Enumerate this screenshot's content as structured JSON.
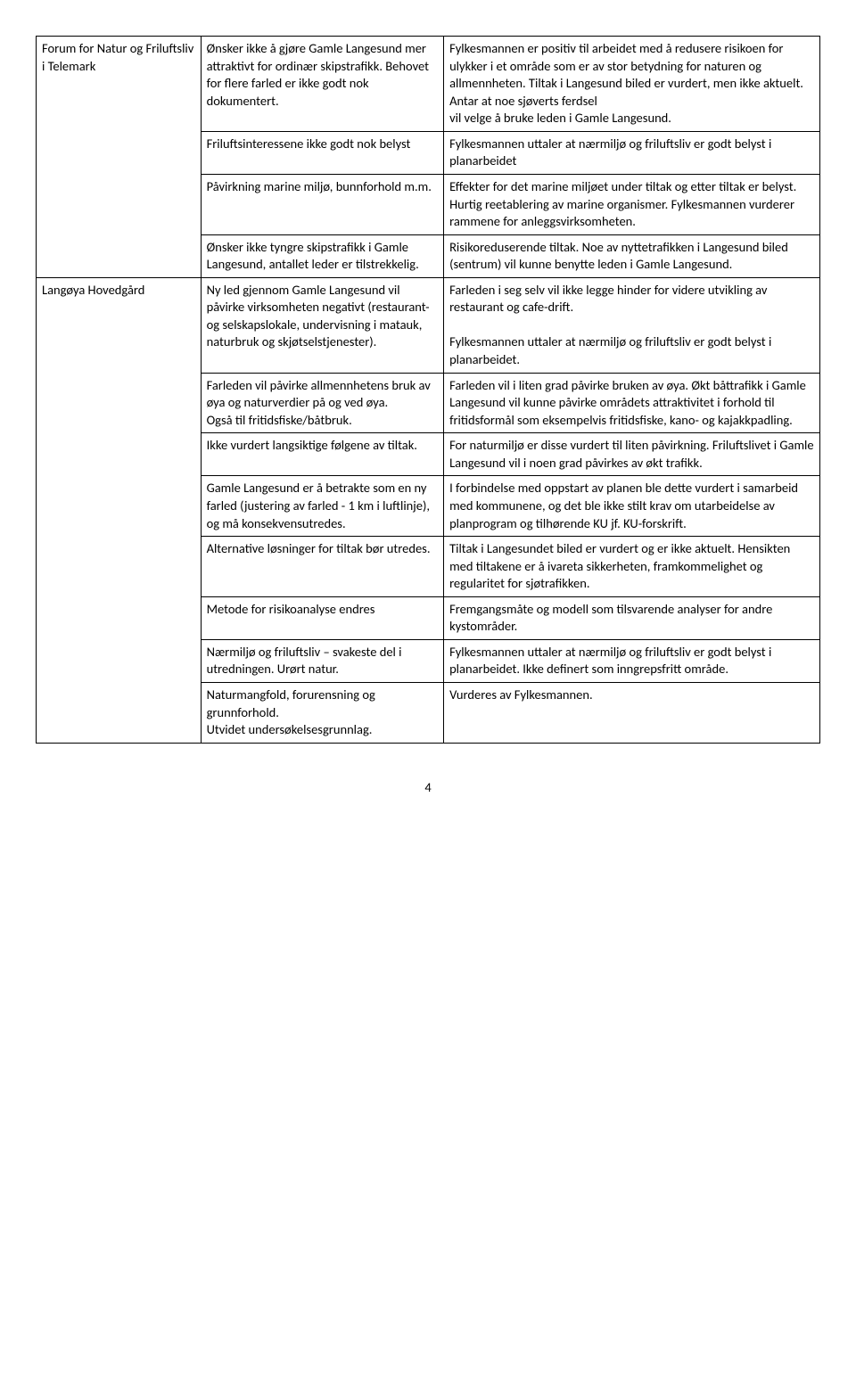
{
  "table": {
    "rows": [
      {
        "c1": "Forum for Natur og Friluftsliv i Telemark",
        "c1_rowspan": 4,
        "c2": "Ønsker ikke å gjøre Gamle Langesund mer attraktivt for ordinær skipstrafikk. Behovet for flere farled er ikke godt nok dokumentert.",
        "c3": "Fylkesmannen er positiv til arbeidet med å redusere risikoen for ulykker i et område som er av stor betydning for naturen og allmennheten. Tiltak i Langesund biled er vurdert, men ikke aktuelt. Antar at noe sjøverts ferdsel\nvil velge å bruke leden i Gamle Langesund."
      },
      {
        "c2": "Friluftsinteressene ikke godt nok belyst",
        "c3": "Fylkesmannen uttaler at nærmiljø og friluftsliv er godt belyst i planarbeidet"
      },
      {
        "c2": "Påvirkning marine miljø, bunnforhold m.m.",
        "c3": "Effekter for det marine miljøet under tiltak og etter tiltak er belyst. Hurtig reetablering av marine organismer. Fylkesmannen vurderer rammene for anleggsvirksomheten."
      },
      {
        "c2": "Ønsker ikke tyngre skipstrafikk i Gamle Langesund, antallet leder er tilstrekkelig.",
        "c3": "Risikoreduserende tiltak. Noe av nyttetrafikken i Langesund biled (sentrum) vil kunne benytte leden i Gamle Langesund."
      },
      {
        "c1": "Langøya Hovedgård",
        "c1_rowspan": 8,
        "c2": "Ny led gjennom Gamle Langesund vil påvirke virksomheten negativt (restaurant- og selskapslokale, undervisning i matauk, naturbruk og skjøtselstjenester).",
        "c3": "Farleden i seg selv vil ikke legge hinder for videre utvikling av restaurant og cafe-drift.\n\nFylkesmannen uttaler at nærmiljø og friluftsliv er godt belyst i planarbeidet."
      },
      {
        "c2": "Farleden vil påvirke allmennhetens bruk av øya og naturverdier på og ved øya.\nOgså til fritidsfiske/båtbruk.",
        "c3": "Farleden vil i liten grad påvirke bruken av øya. Økt båttrafikk i Gamle Langesund vil kunne påvirke områdets attraktivitet i forhold til fritidsformål som eksempelvis fritidsfiske, kano- og kajakkpadling."
      },
      {
        "c2": "Ikke vurdert langsiktige følgene av tiltak.",
        "c3": "For naturmiljø er disse vurdert til liten påvirkning. Friluftslivet i Gamle Langesund vil i noen grad påvirkes av økt trafikk."
      },
      {
        "c2": "Gamle Langesund er å betrakte som en ny farled (justering av farled - 1 km i luftlinje), og må konsekvensutredes.",
        "c3": "I forbindelse med oppstart av planen ble dette vurdert i samarbeid med kommunene, og det ble ikke stilt krav om utarbeidelse av planprogram og tilhørende KU jf. KU-forskrift."
      },
      {
        "c2": "Alternative løsninger for tiltak bør utredes.",
        "c3": "Tiltak i Langesundet biled er vurdert og er ikke aktuelt. Hensikten med tiltakene er å ivareta sikkerheten, framkommelighet og regularitet for sjøtrafikken."
      },
      {
        "c2": "Metode for risikoanalyse endres",
        "c3": "Fremgangsmåte og modell som tilsvarende analyser for andre kystområder."
      },
      {
        "c2": "Nærmiljø og friluftsliv – svakeste del i utredningen. Urørt natur.",
        "c3": "Fylkesmannen uttaler at nærmiljø og friluftsliv er godt belyst i planarbeidet. Ikke definert som inngrepsfritt område."
      },
      {
        "c2": "Naturmangfold, forurensning og grunnforhold.\nUtvidet undersøkelsesgrunnlag.",
        "c3": "Vurderes av Fylkesmannen."
      }
    ]
  },
  "page_number": "4"
}
